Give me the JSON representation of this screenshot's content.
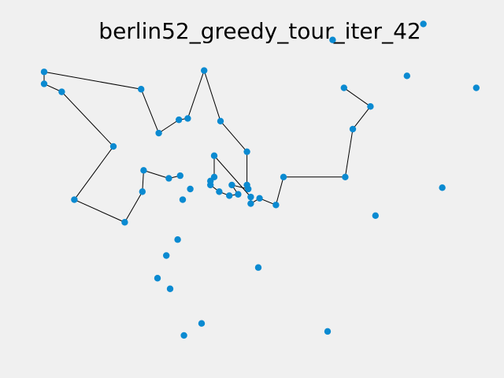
{
  "chart_data": {
    "type": "scatter",
    "title": "berlin52_greedy_tour_iter_42",
    "xlabel": "",
    "ylabel": "",
    "axes_visible": false,
    "grid": false,
    "xlim": [
      -150,
      1850
    ],
    "ylim": [
      -1335,
      85
    ],
    "point_color": "#0a8ad1",
    "line_color": "#000000",
    "points": [
      {
        "x": 565,
        "y": -575
      },
      {
        "x": 25,
        "y": -185
      },
      {
        "x": 345,
        "y": -750
      },
      {
        "x": 945,
        "y": -685
      },
      {
        "x": 845,
        "y": -655
      },
      {
        "x": 880,
        "y": -660
      },
      {
        "x": 25,
        "y": -230
      },
      {
        "x": 525,
        "y": -1000
      },
      {
        "x": 580,
        "y": -1175
      },
      {
        "x": 650,
        "y": -1130
      },
      {
        "x": 1605,
        "y": -620
      },
      {
        "x": 1220,
        "y": -580
      },
      {
        "x": 1465,
        "y": -200
      },
      {
        "x": 1530,
        "y": -5
      },
      {
        "x": 845,
        "y": -680
      },
      {
        "x": 725,
        "y": -370
      },
      {
        "x": 145,
        "y": -665
      },
      {
        "x": 415,
        "y": -635
      },
      {
        "x": 510,
        "y": -875
      },
      {
        "x": 560,
        "y": -365
      },
      {
        "x": 300,
        "y": -465
      },
      {
        "x": 520,
        "y": -585
      },
      {
        "x": 480,
        "y": -415
      },
      {
        "x": 835,
        "y": -625
      },
      {
        "x": 975,
        "y": -580
      },
      {
        "x": 1215,
        "y": -245
      },
      {
        "x": 1320,
        "y": -315
      },
      {
        "x": 1250,
        "y": -400
      },
      {
        "x": 660,
        "y": -180
      },
      {
        "x": 410,
        "y": -250
      },
      {
        "x": 420,
        "y": -555
      },
      {
        "x": 575,
        "y": -665
      },
      {
        "x": 1150,
        "y": -1160
      },
      {
        "x": 700,
        "y": -580
      },
      {
        "x": 685,
        "y": -595
      },
      {
        "x": 685,
        "y": -610
      },
      {
        "x": 770,
        "y": -610
      },
      {
        "x": 795,
        "y": -645
      },
      {
        "x": 720,
        "y": -635
      },
      {
        "x": 760,
        "y": -650
      },
      {
        "x": 475,
        "y": -960
      },
      {
        "x": 95,
        "y": -260
      },
      {
        "x": 875,
        "y": -920
      },
      {
        "x": 700,
        "y": -500
      },
      {
        "x": 555,
        "y": -815
      },
      {
        "x": 830,
        "y": -485
      },
      {
        "x": 1170,
        "y": -65
      },
      {
        "x": 830,
        "y": -610
      },
      {
        "x": 605,
        "y": -625
      },
      {
        "x": 595,
        "y": -360
      },
      {
        "x": 1340,
        "y": -725
      },
      {
        "x": 1740,
        "y": -245
      }
    ],
    "tour_order": [
      0,
      21,
      30,
      17,
      2,
      16,
      20,
      41,
      6,
      1,
      29,
      22,
      19,
      49,
      28,
      15,
      45,
      47,
      23,
      36,
      37,
      39,
      38,
      35,
      34,
      33,
      43,
      4,
      14,
      5,
      3,
      24,
      11,
      27,
      26,
      25
    ]
  }
}
